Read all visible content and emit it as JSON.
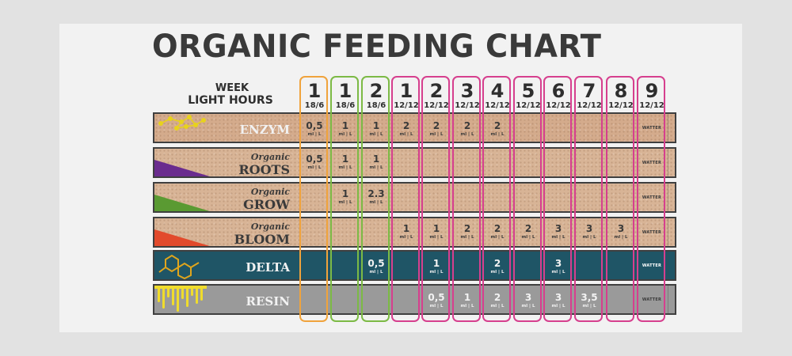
{
  "title": "ORGANIC FEEDING CHART",
  "header": {
    "week_label": "WEEK",
    "light_label": "LIGHT HOURS"
  },
  "columns": [
    {
      "week": "1",
      "light": "18/6"
    },
    {
      "week": "1",
      "light": "18/6"
    },
    {
      "week": "2",
      "light": "18/6"
    },
    {
      "week": "1",
      "light": "12/12"
    },
    {
      "week": "2",
      "light": "12/12"
    },
    {
      "week": "3",
      "light": "12/12"
    },
    {
      "week": "4",
      "light": "12/12"
    },
    {
      "week": "5",
      "light": "12/12"
    },
    {
      "week": "6",
      "light": "12/12"
    },
    {
      "week": "7",
      "light": "12/12"
    },
    {
      "week": "8",
      "light": "12/12"
    },
    {
      "week": "9",
      "light": "12/12"
    }
  ],
  "frame_colors": [
    "#f0a33c",
    "#7cba45",
    "#7cba45",
    "#d63f8e",
    "#d63f8e",
    "#d63f8e",
    "#d63f8e",
    "#d63f8e",
    "#d63f8e",
    "#d63f8e",
    "#d63f8e",
    "#d63f8e"
  ],
  "unit": "ml | L",
  "water_label": "WATTER",
  "chart_data": {
    "type": "table",
    "title": "ORGANIC FEEDING CHART",
    "columns": [
      "1 18/6",
      "1 18/6",
      "2 18/6",
      "1 12/12",
      "2 12/12",
      "3 12/12",
      "4 12/12",
      "5 12/12",
      "6 12/12",
      "7 12/12",
      "8 12/12",
      "9 12/12"
    ],
    "rows": [
      {
        "name": "ENZYM",
        "prefix": "",
        "values": [
          "0,5",
          "1",
          "1",
          "2",
          "2",
          "2",
          "2",
          "",
          "",
          "",
          "",
          "WATTER"
        ]
      },
      {
        "name": "ROOTS",
        "prefix": "Organic",
        "values": [
          "0,5",
          "1",
          "1",
          "",
          "",
          "",
          "",
          "",
          "",
          "",
          "",
          "WATTER"
        ]
      },
      {
        "name": "GROW",
        "prefix": "Organic",
        "values": [
          "",
          "1",
          "2.3",
          "",
          "",
          "",
          "",
          "",
          "",
          "",
          "",
          "WATTER"
        ]
      },
      {
        "name": "BLOOM",
        "prefix": "Organic",
        "values": [
          "",
          "",
          "",
          "1",
          "1",
          "2",
          "2",
          "2",
          "3",
          "3",
          "3",
          "WATTER"
        ]
      },
      {
        "name": "DELTA",
        "prefix": "",
        "values": [
          "",
          "",
          "0,5",
          "",
          "1",
          "",
          "2",
          "",
          "3",
          "",
          "",
          "WATTER"
        ]
      },
      {
        "name": "RESIN",
        "prefix": "",
        "values": [
          "",
          "",
          "",
          "",
          "0,5",
          "1",
          "2",
          "3",
          "3",
          "3,5",
          "",
          "WATTER"
        ]
      }
    ],
    "unit": "ml | L"
  },
  "icon_colors": {
    "roots": "#6a2c8e",
    "grow": "#5a9a32",
    "bloom": "#e24a2c",
    "enzym": "#e8d21c",
    "delta": "#e0a51c",
    "resin": "#f0dc2c"
  }
}
